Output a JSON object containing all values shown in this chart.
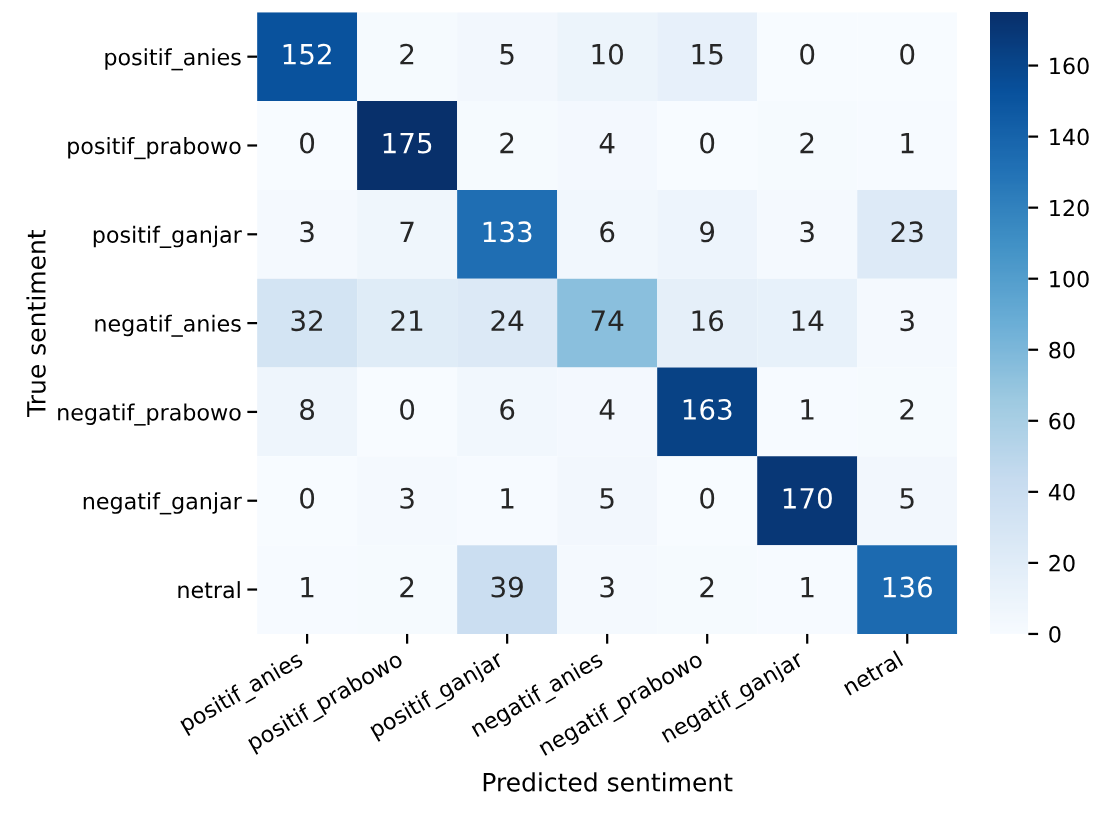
{
  "chart_data": {
    "type": "heatmap",
    "xlabel": "Predicted sentiment",
    "ylabel": "True sentiment",
    "categories": [
      "positif_anies",
      "positif_prabowo",
      "positif_ganjar",
      "negatif_anies",
      "negatif_prabowo",
      "negatif_ganjar",
      "netral"
    ],
    "y_categories": [
      "positif_anies",
      "positif_prabowo",
      "positif_ganjar",
      "negatif_anies",
      "negatif_prabowo",
      "negatif_ganjar",
      "netral"
    ],
    "cells": [
      [
        152,
        2,
        5,
        10,
        15,
        0,
        0
      ],
      [
        0,
        175,
        2,
        4,
        0,
        2,
        1
      ],
      [
        3,
        7,
        133,
        6,
        9,
        3,
        23
      ],
      [
        32,
        21,
        24,
        74,
        16,
        14,
        3
      ],
      [
        8,
        0,
        6,
        4,
        163,
        1,
        2
      ],
      [
        0,
        3,
        1,
        5,
        0,
        170,
        5
      ],
      [
        1,
        2,
        39,
        3,
        2,
        1,
        136
      ]
    ],
    "clim": [
      0,
      175
    ],
    "cticks": [
      0,
      20,
      40,
      60,
      80,
      100,
      120,
      140,
      160
    ],
    "data_labels": true,
    "grid": false
  }
}
